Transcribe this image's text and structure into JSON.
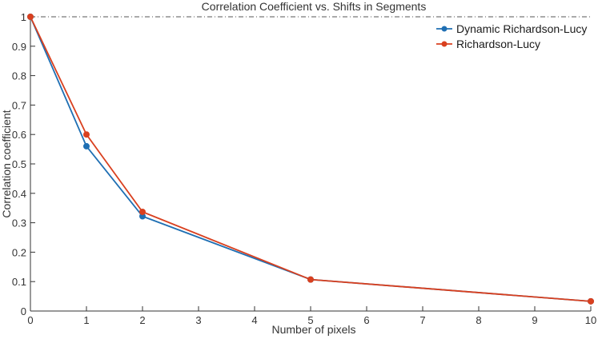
{
  "chart_data": {
    "type": "line",
    "title": "Correlation Coefficient vs. Shifts in Segments",
    "xlabel": "Number of pixels",
    "ylabel": "Correlation coefficient",
    "xlim": [
      0,
      10
    ],
    "ylim": [
      0,
      1
    ],
    "xticks": [
      0,
      1,
      2,
      3,
      4,
      5,
      6,
      7,
      8,
      9,
      10
    ],
    "yticks": [
      0,
      0.1,
      0.2,
      0.3,
      0.4,
      0.5,
      0.6,
      0.7,
      0.8,
      0.9,
      1
    ],
    "reference_line": {
      "y": 1,
      "style": "dash-dot"
    },
    "legend_position": "top-right",
    "series": [
      {
        "name": "Dynamic Richardson-Lucy",
        "color": "#1f6fb3",
        "x": [
          0,
          1,
          2,
          5,
          10
        ],
        "y": [
          1.0,
          0.56,
          0.322,
          0.107,
          0.033
        ]
      },
      {
        "name": "Richardson-Lucy",
        "color": "#d9401f",
        "x": [
          0,
          1,
          2,
          5,
          10
        ],
        "y": [
          1.0,
          0.6,
          0.337,
          0.107,
          0.033
        ]
      }
    ]
  }
}
